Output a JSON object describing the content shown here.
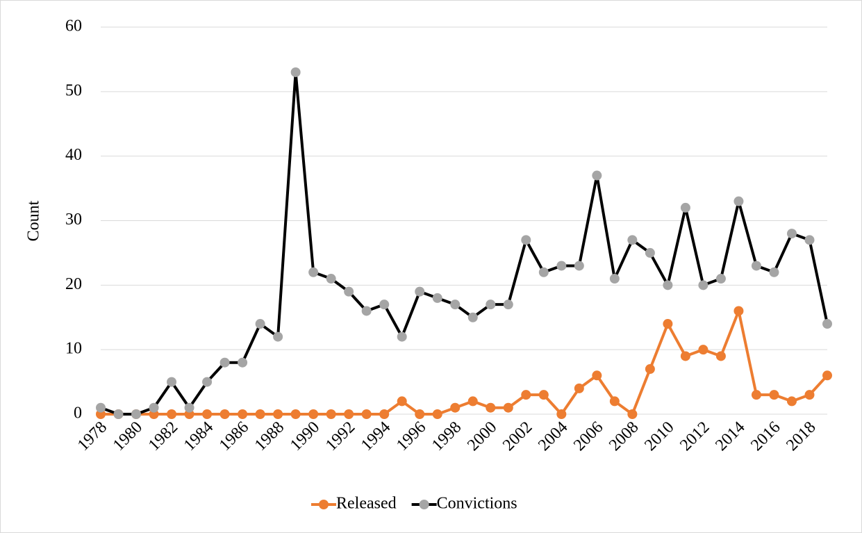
{
  "chart_data": {
    "type": "line",
    "y_label": "Count",
    "categories": [
      "1978",
      null,
      "1980",
      null,
      "1982",
      null,
      "1984",
      null,
      "1986",
      null,
      "1988",
      null,
      "1990",
      null,
      "1992",
      null,
      "1994",
      null,
      "1996",
      null,
      "1998",
      null,
      "2000",
      null,
      "2002",
      null,
      "2004",
      null,
      "2006",
      null,
      "2008",
      null,
      "2010",
      null,
      "2012",
      null,
      "2014",
      null,
      "2016",
      null,
      "2018",
      null
    ],
    "series": [
      {
        "name": "Released",
        "color": "#ed7d31",
        "marker_color": "#ed7d31",
        "values": [
          0,
          0,
          0,
          0,
          0,
          0,
          0,
          0,
          0,
          0,
          0,
          0,
          0,
          0,
          0,
          0,
          0,
          2,
          0,
          0,
          1,
          2,
          1,
          1,
          3,
          3,
          0,
          4,
          6,
          2,
          0,
          7,
          14,
          9,
          10,
          9,
          16,
          3,
          3,
          2,
          3,
          6
        ]
      },
      {
        "name": "Convictions",
        "color": "#000000",
        "marker_color": "#a5a5a5",
        "values": [
          1,
          0,
          0,
          1,
          5,
          1,
          5,
          8,
          8,
          14,
          12,
          53,
          22,
          21,
          19,
          16,
          17,
          12,
          19,
          18,
          17,
          15,
          17,
          17,
          27,
          22,
          23,
          23,
          37,
          21,
          27,
          25,
          20,
          32,
          20,
          21,
          33,
          23,
          22,
          28,
          27,
          14
        ]
      }
    ],
    "ylim": [
      0,
      60
    ],
    "yticks": [
      0,
      10,
      20,
      30,
      40,
      50,
      60
    ],
    "grid": true,
    "legend": "bottom"
  }
}
